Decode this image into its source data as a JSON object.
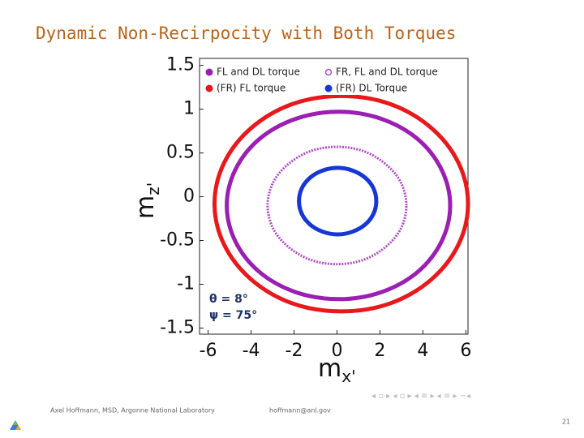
{
  "title": "Dynamic Non-Recirpocity with Both Torques",
  "footer": {
    "author": "Axel Hoffmann, MSD, Argonne National Laboratory",
    "email": "hoffmann@anl.gov",
    "page": "21"
  },
  "chart_data": {
    "type": "line",
    "xlabel": "m",
    "xlabel_sub": "x'",
    "ylabel": "m",
    "ylabel_sub": "z'",
    "annotations": [
      "θ = 8°",
      "ψ = 75°"
    ],
    "xlim": [
      -6.4,
      6.1
    ],
    "ylim": [
      -1.57,
      1.58
    ],
    "xticks": [
      -6,
      -4,
      -2,
      0,
      2,
      4,
      6
    ],
    "yticks": [
      -1.5,
      -1,
      -0.5,
      0,
      0.5,
      1,
      1.5
    ],
    "series": [
      {
        "name": "FL and DL torque",
        "color": "#9b1fb3",
        "marker": "filled",
        "x": [
          5.27,
          4.87,
          3.75,
          2.06,
          0.07,
          -1.92,
          -3.61,
          -4.73,
          -5.13,
          -4.73,
          -3.61,
          -1.92,
          0.07,
          2.06,
          3.75,
          4.87,
          5.27
        ],
        "values": [
          -0.1,
          0.31,
          0.66,
          0.89,
          0.97,
          0.89,
          0.66,
          0.31,
          -0.1,
          -0.51,
          -0.86,
          -1.09,
          -1.17,
          -1.09,
          -0.86,
          -0.51,
          -0.1
        ]
      },
      {
        "name": "(FR) FL torque",
        "color": "#e8191c",
        "marker": "filled",
        "x": [
          6.1,
          5.65,
          4.37,
          2.46,
          0.2,
          -2.06,
          -3.97,
          -5.25,
          -5.7,
          -5.25,
          -3.97,
          -2.06,
          0.2,
          2.46,
          4.37,
          5.65,
          6.1
        ],
        "values": [
          -0.08,
          0.39,
          0.79,
          1.06,
          1.15,
          1.06,
          0.79,
          0.39,
          -0.08,
          -0.55,
          -0.95,
          -1.22,
          -1.31,
          -1.22,
          -0.95,
          -0.55,
          -0.08
        ]
      },
      {
        "name": "FR, FL and DL torque",
        "color": "#b04cc4",
        "marker": "hollow",
        "x": [
          3.23,
          2.98,
          2.28,
          1.24,
          0,
          -1.24,
          -2.28,
          -2.98,
          -3.23,
          -2.98,
          -2.28,
          -1.24,
          0,
          1.24,
          2.28,
          2.98,
          3.23
        ],
        "values": [
          -0.1,
          0.16,
          0.37,
          0.52,
          0.57,
          0.52,
          0.37,
          0.16,
          -0.1,
          -0.36,
          -0.57,
          -0.72,
          -0.77,
          -0.72,
          -0.57,
          -0.36,
          -0.1
        ]
      },
      {
        "name": "(FR) DL Torque",
        "color": "#1637d6",
        "marker": "filled",
        "x": [
          1.83,
          1.69,
          1.3,
          0.72,
          0.03,
          -0.66,
          -1.24,
          -1.63,
          -1.77,
          -1.63,
          -1.24,
          -0.66,
          0.03,
          0.72,
          1.3,
          1.69,
          1.83
        ],
        "values": [
          -0.05,
          0.1,
          0.22,
          0.3,
          0.33,
          0.3,
          0.22,
          0.1,
          -0.05,
          -0.2,
          -0.32,
          -0.4,
          -0.43,
          -0.4,
          -0.32,
          -0.2,
          -0.05
        ]
      }
    ]
  }
}
